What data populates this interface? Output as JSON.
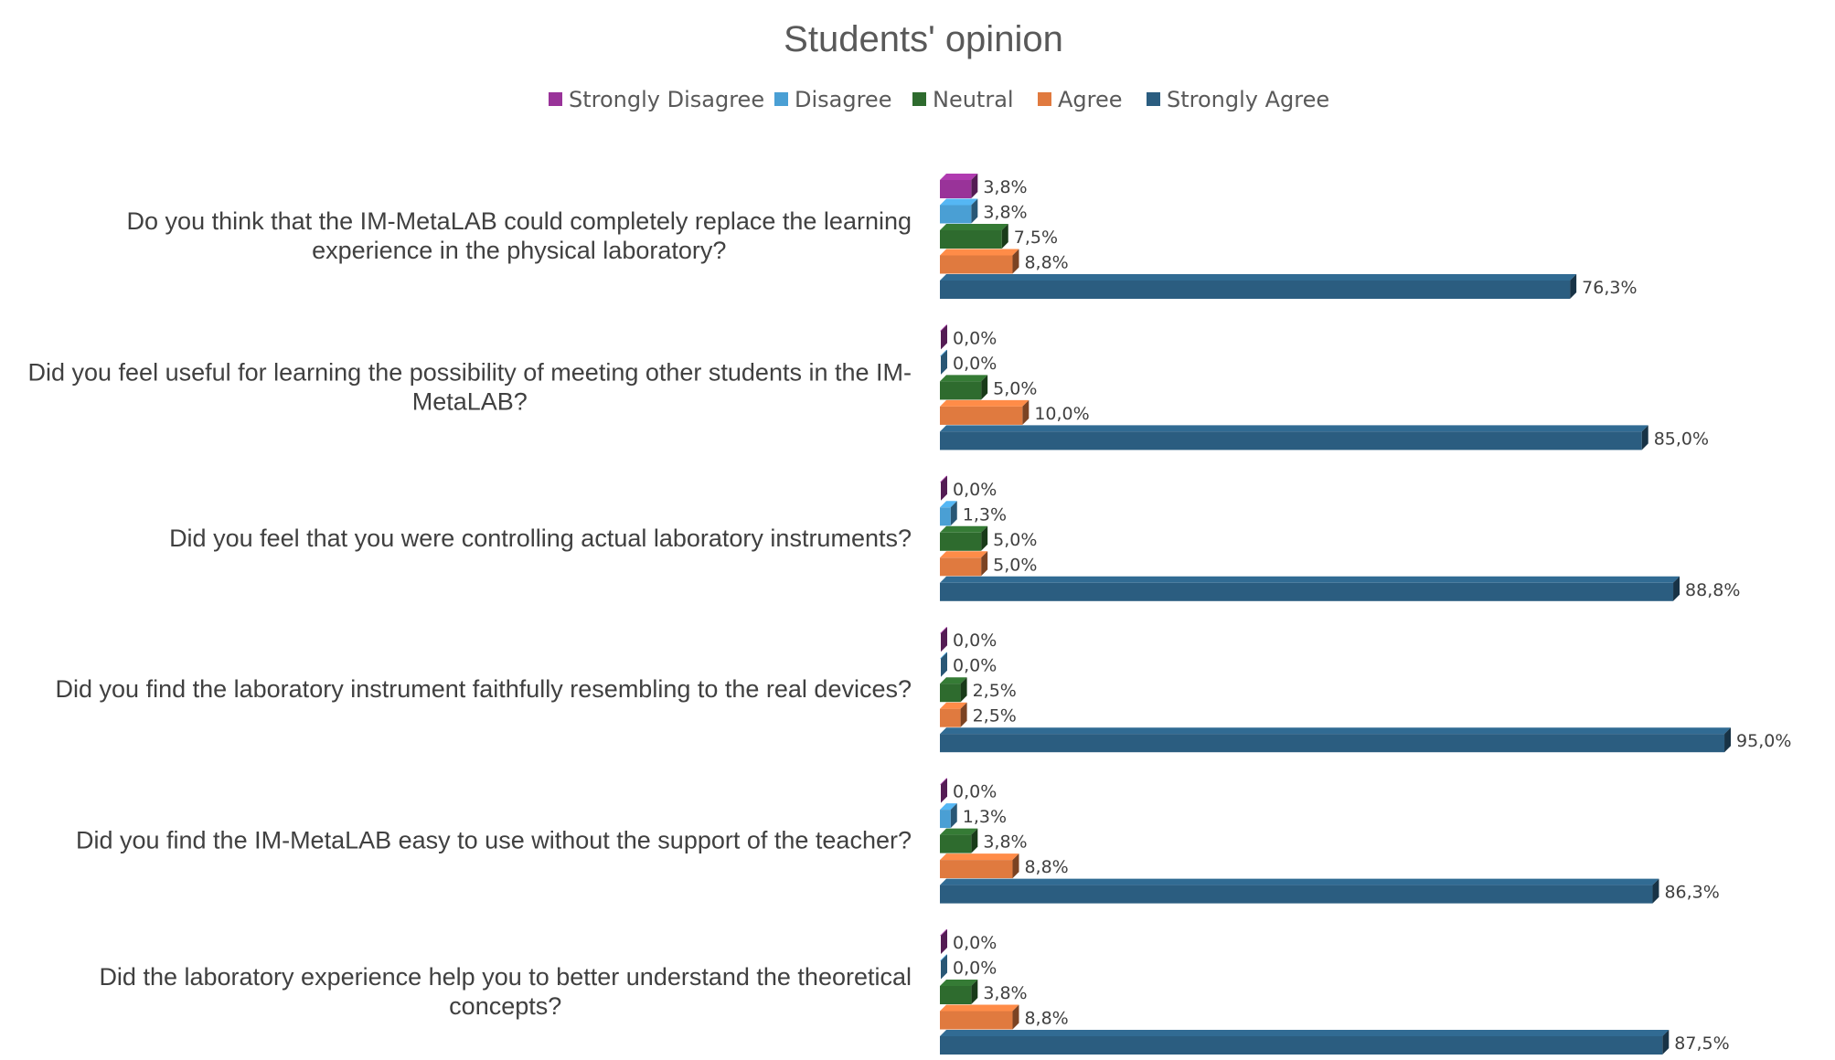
{
  "chart_data": {
    "type": "bar",
    "orientation": "horizontal",
    "style": "3d",
    "title": "Students' opinion",
    "legend_position": "top",
    "grid": false,
    "xlim": [
      0,
      100
    ],
    "categories": [
      [
        "Do you think that the IM-MetaLAB could completely replace the learning",
        "experience in the physical laboratory?"
      ],
      [
        "Did you feel useful for learning the possibility of meeting other students in the IM-",
        "MetaLAB?"
      ],
      [
        "Did you feel that you were controlling actual laboratory instruments?"
      ],
      [
        "Did you find the laboratory instrument faithfully resembling to the real devices?"
      ],
      [
        "Did you find the IM-MetaLAB easy to use without the support of the teacher?"
      ],
      [
        "Did the laboratory experience help you to better understand the theoretical",
        "concepts?"
      ]
    ],
    "series": [
      {
        "name": "Strongly Disagree",
        "color": "#993399",
        "values": [
          3.8,
          0.0,
          0.0,
          0.0,
          0.0,
          0.0
        ],
        "labels": [
          "3,8%",
          "0,0%",
          "0,0%",
          "0,0%",
          "0,0%",
          "0,0%"
        ]
      },
      {
        "name": "Disagree",
        "color": "#4a9fd4",
        "values": [
          3.8,
          0.0,
          1.3,
          0.0,
          1.3,
          0.0
        ],
        "labels": [
          "3,8%",
          "0,0%",
          "1,3%",
          "0,0%",
          "1,3%",
          "0,0%"
        ]
      },
      {
        "name": "Neutral",
        "color": "#2e6b2e",
        "values": [
          7.5,
          5.0,
          5.0,
          2.5,
          3.8,
          3.8
        ],
        "labels": [
          "7,5%",
          "5,0%",
          "5,0%",
          "2,5%",
          "3,8%",
          "3,8%"
        ]
      },
      {
        "name": "Agree",
        "color": "#e07a3f",
        "values": [
          8.8,
          10.0,
          5.0,
          2.5,
          8.8,
          8.8
        ],
        "labels": [
          "8,8%",
          "10,0%",
          "5,0%",
          "2,5%",
          "8,8%",
          "8,8%"
        ]
      },
      {
        "name": "Strongly Agree",
        "color": "#2b5d80",
        "values": [
          76.3,
          85.0,
          88.8,
          95.0,
          86.3,
          87.5
        ],
        "labels": [
          "76,3%",
          "85,0%",
          "88,8%",
          "95,0%",
          "86,3%",
          "87,5%"
        ]
      }
    ]
  }
}
